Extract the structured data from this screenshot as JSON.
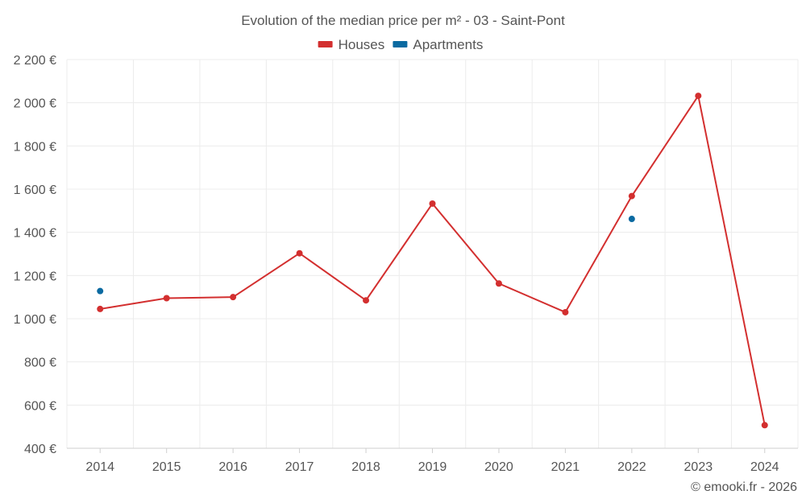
{
  "chart_data": {
    "type": "line",
    "title": "Evolution of the median price per m² - 03 - Saint-Pont",
    "xlabel": "",
    "ylabel": "",
    "categories": [
      "2014",
      "2015",
      "2016",
      "2017",
      "2018",
      "2019",
      "2020",
      "2021",
      "2022",
      "2023",
      "2024"
    ],
    "ylim": [
      400,
      2200
    ],
    "yticks": [
      400,
      600,
      800,
      1000,
      1200,
      1400,
      1600,
      1800,
      2000,
      2200
    ],
    "ytick_labels": [
      "400 €",
      "600 €",
      "800 €",
      "1 000 €",
      "1 200 €",
      "1 400 €",
      "1 600 €",
      "1 800 €",
      "2 000 €",
      "2 200 €"
    ],
    "grid": true,
    "legend_position": "top-center",
    "series": [
      {
        "name": "Houses",
        "color": "#d32f2f",
        "values": [
          1045,
          1095,
          1100,
          1303,
          1085,
          1533,
          1163,
          1030,
          1568,
          2032,
          507
        ]
      },
      {
        "name": "Apartments",
        "color": "#0a6aa1",
        "values": [
          1128,
          null,
          null,
          null,
          null,
          null,
          null,
          null,
          1462,
          null,
          null
        ]
      }
    ],
    "credit": "© emooki.fr - 2026"
  }
}
